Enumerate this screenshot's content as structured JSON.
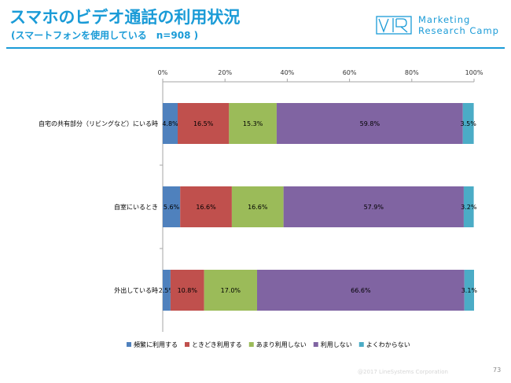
{
  "header": {
    "title": "スマホのビデオ通話の利用状況",
    "subtitle": "(スマートフォンを使用している　n=908 )"
  },
  "logo": {
    "line1": "Marketing",
    "line2": "Research Camp"
  },
  "footer": {
    "copyright": "@2017 LineSystems Corporation",
    "page_number": "73"
  },
  "chart_data": {
    "type": "bar",
    "orientation": "horizontal",
    "stacked": true,
    "percent": true,
    "xlim": [
      0,
      100
    ],
    "x_ticks": [
      "0%",
      "20%",
      "40%",
      "60%",
      "80%",
      "100%"
    ],
    "tick_values": [
      0,
      20,
      40,
      60,
      80,
      100
    ],
    "categories": [
      "自宅の共有部分（リビングなど）にいる時",
      "自室にいるとき",
      "外出している時"
    ],
    "series": [
      {
        "name": "頻繁に利用する",
        "color": "#4f81bd",
        "values": [
          4.8,
          5.6,
          2.5
        ],
        "labels": [
          "4.8%",
          "5.6%",
          "2.5%"
        ]
      },
      {
        "name": "ときどき利用する",
        "color": "#c0504d",
        "values": [
          16.5,
          16.6,
          10.8
        ],
        "labels": [
          "16.5%",
          "16.6%",
          "10.8%"
        ]
      },
      {
        "name": "あまり利用しない",
        "color": "#9bbb59",
        "values": [
          15.3,
          16.6,
          17.0
        ],
        "labels": [
          "15.3%",
          "16.6%",
          "17.0%"
        ]
      },
      {
        "name": "利用しない",
        "color": "#8064a2",
        "values": [
          59.8,
          57.9,
          66.6
        ],
        "labels": [
          "59.8%",
          "57.9%",
          "66.6%"
        ]
      },
      {
        "name": "よくわからない",
        "color": "#4bacc6",
        "values": [
          3.5,
          3.2,
          3.1
        ],
        "labels": [
          "3.5%",
          "3.2%",
          "3.1%"
        ]
      }
    ],
    "legend": "bottom",
    "grid": false
  }
}
